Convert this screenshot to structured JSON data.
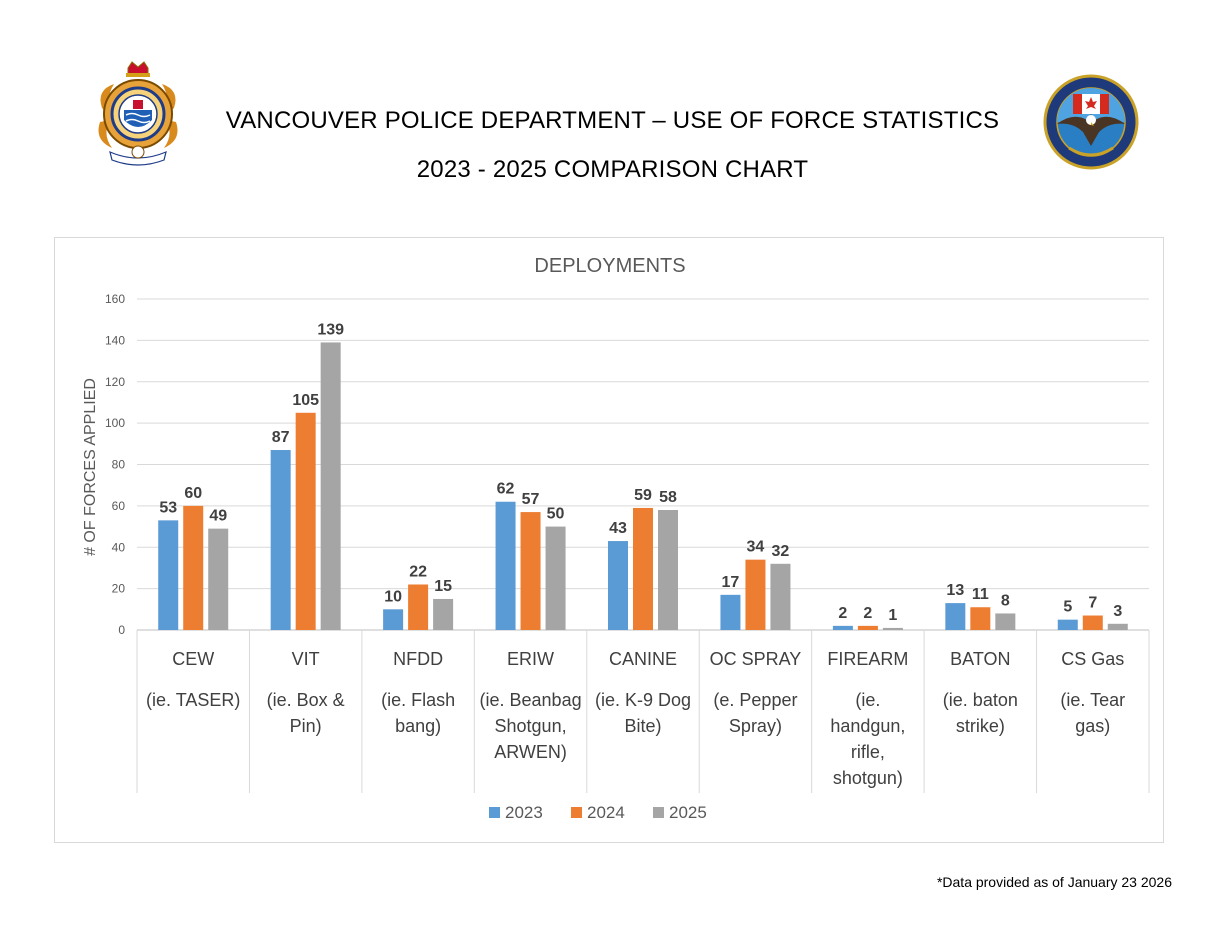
{
  "header": {
    "title_line1": "VANCOUVER POLICE DEPARTMENT – USE OF FORCE STATISTICS",
    "title_line2": "2023 - 2025 COMPARISON CHART"
  },
  "logos": {
    "left": "vancouver-police-crest-icon",
    "right": "vancouver-tactical-training-centre-icon"
  },
  "chart_data": {
    "type": "bar",
    "title": "DEPLOYMENTS",
    "ylabel": "# OF FORCES APPLIED",
    "xlabel": "",
    "ylim": [
      0,
      160
    ],
    "yticks": [
      0,
      20,
      40,
      60,
      80,
      100,
      120,
      140,
      160
    ],
    "grid": true,
    "legend": "bottom",
    "categories": [
      {
        "name": "CEW",
        "desc": [
          "(ie. TASER)"
        ]
      },
      {
        "name": "VIT",
        "desc": [
          "(ie. Box &",
          "Pin)"
        ]
      },
      {
        "name": "NFDD",
        "desc": [
          "(ie. Flash",
          "bang)"
        ]
      },
      {
        "name": "ERIW",
        "desc": [
          "(ie. Beanbag",
          "Shotgun,",
          "ARWEN)"
        ]
      },
      {
        "name": "CANINE",
        "desc": [
          "(ie. K-9 Dog",
          "Bite)"
        ]
      },
      {
        "name": "OC SPRAY",
        "desc": [
          "(e. Pepper",
          "Spray)"
        ]
      },
      {
        "name": "FIREARM",
        "desc": [
          "(ie.",
          "handgun,",
          "rifle,",
          "shotgun)"
        ]
      },
      {
        "name": "BATON",
        "desc": [
          "(ie. baton",
          "strike)"
        ]
      },
      {
        "name": "CS Gas",
        "desc": [
          "(ie. Tear",
          "gas)"
        ]
      }
    ],
    "series": [
      {
        "name": "2023",
        "color": "#5b9bd5",
        "values": [
          53,
          87,
          10,
          62,
          43,
          17,
          2,
          13,
          5
        ]
      },
      {
        "name": "2024",
        "color": "#ed7d31",
        "values": [
          60,
          105,
          22,
          57,
          59,
          34,
          2,
          11,
          7
        ]
      },
      {
        "name": "2025",
        "color": "#a5a5a5",
        "values": [
          49,
          139,
          15,
          50,
          58,
          32,
          1,
          8,
          3
        ]
      }
    ]
  },
  "footnote": "*Data provided as of January 23 2026"
}
